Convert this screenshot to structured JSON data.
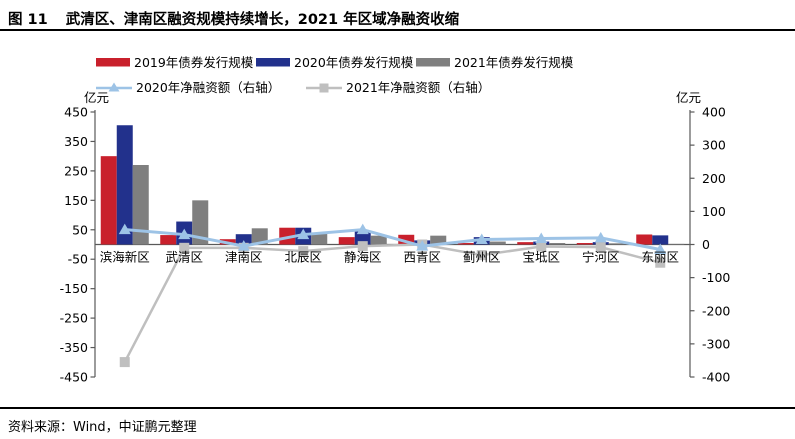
{
  "header": {
    "figure_label": "图 11",
    "title": "武清区、津南区融资规模持续增长，2021 年区域净融资收缩"
  },
  "footer": {
    "source": "资料来源：Wind，中证鹏元整理"
  },
  "chart_data": {
    "type": "bar",
    "subtype": "grouped-bars-with-lines-dual-axis",
    "categories": [
      "滨海新区",
      "武清区",
      "津南区",
      "北辰区",
      "静海区",
      "西青区",
      "蓟州区",
      "宝坻区",
      "宁河区",
      "东丽区"
    ],
    "bar_series": [
      {
        "name": "2019年债券发行规模",
        "color": "#C9202C",
        "axis": "left",
        "values": [
          300,
          32,
          18,
          57,
          25,
          33,
          5,
          8,
          5,
          34
        ]
      },
      {
        "name": "2020年债券发行规模",
        "color": "#22318C",
        "axis": "left",
        "values": [
          405,
          78,
          35,
          57,
          45,
          14,
          25,
          10,
          8,
          31
        ]
      },
      {
        "name": "2021年债券发行规模",
        "color": "#7F7F7F",
        "axis": "left",
        "values": [
          270,
          150,
          55,
          40,
          30,
          30,
          10,
          5,
          4,
          2
        ]
      }
    ],
    "line_series": [
      {
        "name": "2021年净融资额（右轴）",
        "color": "#BFBFBF",
        "marker": "square",
        "axis": "right",
        "values": [
          -355,
          -10,
          -10,
          -20,
          -5,
          0,
          -32,
          -6,
          -8,
          -55
        ]
      },
      {
        "name": "2020年净融资额（右轴）",
        "color": "#9DC3E6",
        "marker": "triangle",
        "axis": "right",
        "values": [
          45,
          30,
          -5,
          30,
          45,
          -5,
          15,
          18,
          20,
          -15
        ]
      }
    ],
    "legend_order": [
      "2019年债券发行规模",
      "2020年债券发行规模",
      "2021年债券发行规模",
      "2020年净融资额（右轴）",
      "2021年净融资额（右轴）"
    ],
    "left_axis": {
      "label": "亿元",
      "min": -450,
      "max": 450,
      "step": 100,
      "ticks": [
        450,
        350,
        250,
        150,
        50,
        -50,
        -150,
        -250,
        -350,
        -450
      ]
    },
    "right_axis": {
      "label": "亿元",
      "min": -400,
      "max": 400,
      "step": 100,
      "ticks": [
        400,
        300,
        200,
        100,
        0,
        -100,
        -200,
        -300,
        -400
      ]
    },
    "grid": false,
    "legend_position": "top",
    "axis_color": "#595959",
    "text_color": "#000000"
  }
}
